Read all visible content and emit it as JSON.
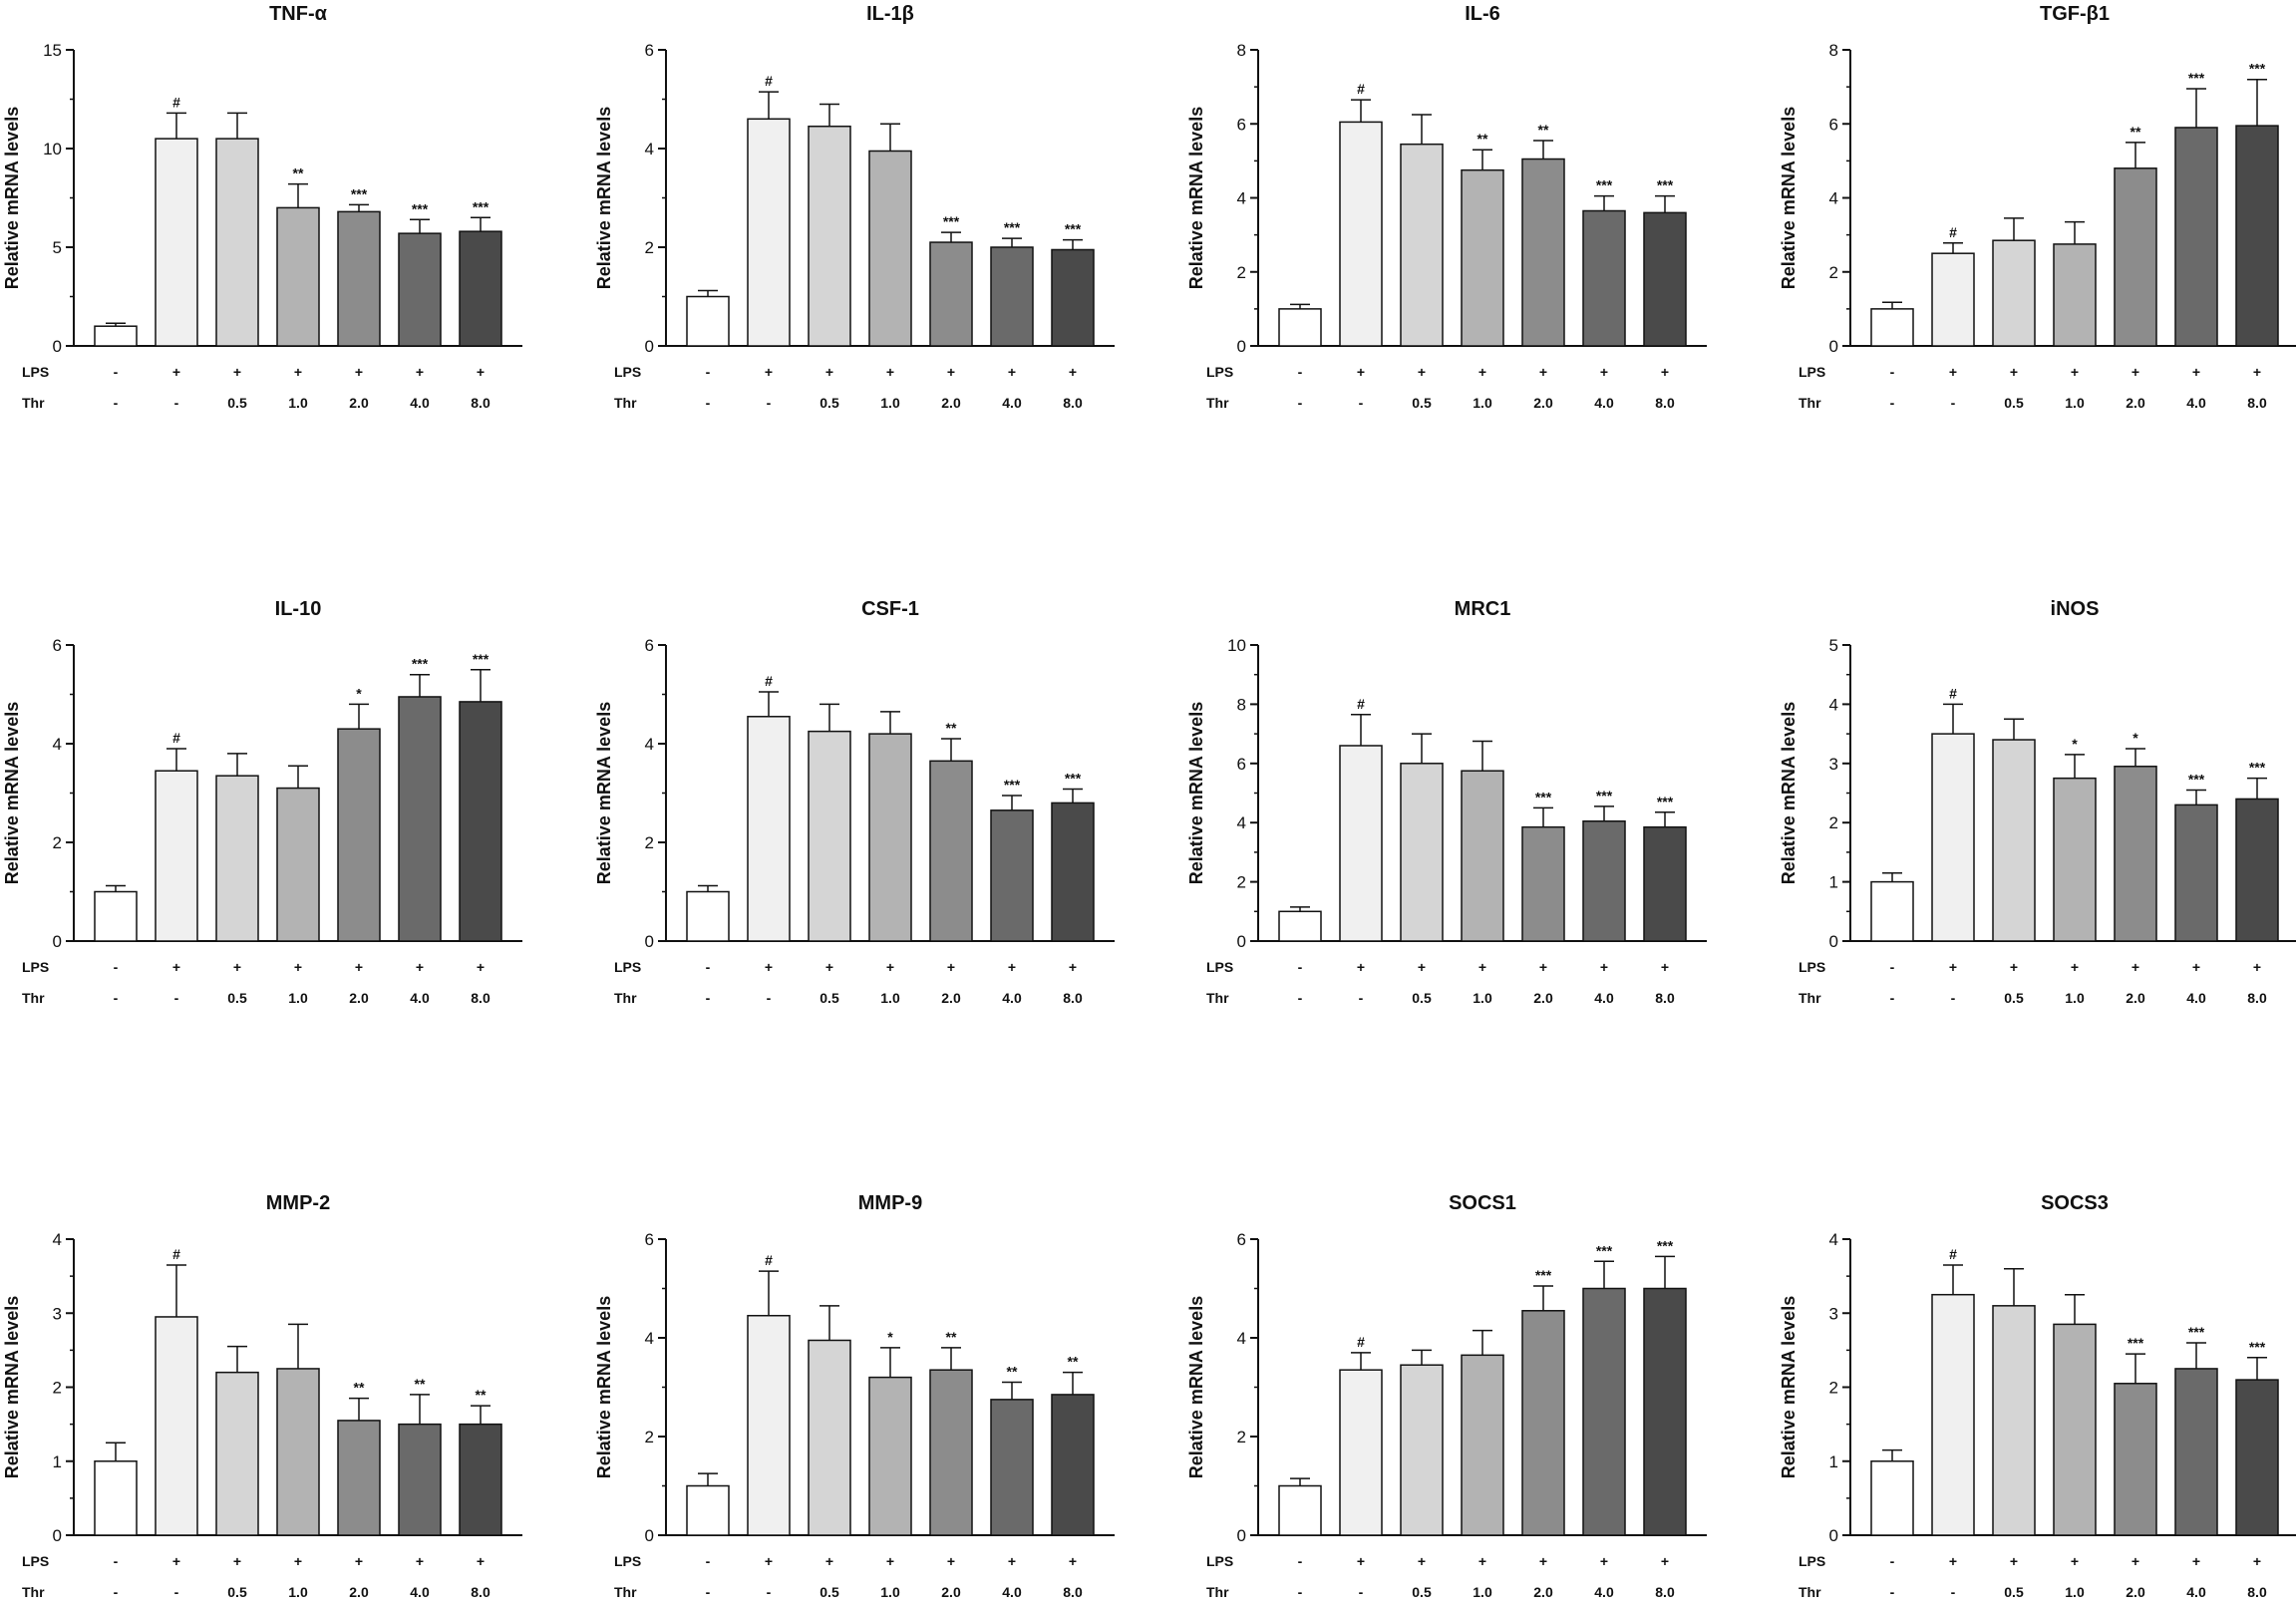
{
  "row_labels": [
    "LPS",
    "Thr"
  ],
  "conditions": {
    "LPS": [
      "-",
      "+",
      "+",
      "+",
      "+",
      "+",
      "+"
    ],
    "Thr": [
      "-",
      "-",
      "0.5",
      "1.0",
      "2.0",
      "4.0",
      "8.0"
    ]
  },
  "bar_colors": [
    "#ffffff",
    "#f0f0f0",
    "#d5d5d5",
    "#b3b3b3",
    "#8c8c8c",
    "#6a6a6a",
    "#4a4a4a"
  ],
  "chart_data": [
    {
      "type": "bar",
      "title": "TNF-α",
      "ylabel": "Relative mRNA levels",
      "ylim": [
        0,
        15
      ],
      "yticks": [
        0,
        5,
        10,
        15
      ],
      "yminor": 2.5,
      "values": [
        1.0,
        10.5,
        10.5,
        7.0,
        6.8,
        5.7,
        5.8
      ],
      "errors": [
        0.15,
        1.3,
        1.3,
        1.2,
        0.35,
        0.7,
        0.7
      ],
      "labels": [
        "",
        "#",
        "",
        "**",
        "***",
        "***",
        "***"
      ]
    },
    {
      "type": "bar",
      "title": "IL-1β",
      "ylabel": "Relative mRNA levels",
      "ylim": [
        0,
        6
      ],
      "yticks": [
        0,
        2,
        4,
        6
      ],
      "yminor": 1,
      "values": [
        1.0,
        4.6,
        4.45,
        3.95,
        2.1,
        2.0,
        1.95
      ],
      "errors": [
        0.12,
        0.55,
        0.45,
        0.55,
        0.2,
        0.18,
        0.2
      ],
      "labels": [
        "",
        "#",
        "",
        "",
        "***",
        "***",
        "***"
      ]
    },
    {
      "type": "bar",
      "title": "IL-6",
      "ylabel": "Relative mRNA levels",
      "ylim": [
        0,
        8
      ],
      "yticks": [
        0,
        2,
        4,
        6,
        8
      ],
      "yminor": 1,
      "values": [
        1.0,
        6.05,
        5.45,
        4.75,
        5.05,
        3.65,
        3.6
      ],
      "errors": [
        0.12,
        0.6,
        0.8,
        0.55,
        0.5,
        0.4,
        0.45
      ],
      "labels": [
        "",
        "#",
        "",
        "**",
        "**",
        "***",
        "***"
      ]
    },
    {
      "type": "bar",
      "title": "TGF-β1",
      "ylabel": "Relative mRNA levels",
      "ylim": [
        0,
        8
      ],
      "yticks": [
        0,
        2,
        4,
        6,
        8
      ],
      "yminor": 1,
      "values": [
        1.0,
        2.5,
        2.85,
        2.75,
        4.8,
        5.9,
        5.95
      ],
      "errors": [
        0.18,
        0.28,
        0.6,
        0.6,
        0.7,
        1.05,
        1.25
      ],
      "labels": [
        "",
        "#",
        "",
        "",
        "**",
        "***",
        "***"
      ]
    },
    {
      "type": "bar",
      "title": "IL-10",
      "ylabel": "Relative mRNA levels",
      "ylim": [
        0,
        6
      ],
      "yticks": [
        0,
        2,
        4,
        6
      ],
      "yminor": 1,
      "values": [
        1.0,
        3.45,
        3.35,
        3.1,
        4.3,
        4.95,
        4.85
      ],
      "errors": [
        0.12,
        0.45,
        0.45,
        0.45,
        0.5,
        0.45,
        0.65
      ],
      "labels": [
        "",
        "#",
        "",
        "",
        "*",
        "***",
        "***"
      ]
    },
    {
      "type": "bar",
      "title": "CSF-1",
      "ylabel": "Relative mRNA levels",
      "ylim": [
        0,
        6
      ],
      "yticks": [
        0,
        2,
        4,
        6
      ],
      "yminor": 1,
      "values": [
        1.0,
        4.55,
        4.25,
        4.2,
        3.65,
        2.65,
        2.8
      ],
      "errors": [
        0.12,
        0.5,
        0.55,
        0.45,
        0.45,
        0.3,
        0.28
      ],
      "labels": [
        "",
        "#",
        "",
        "",
        "**",
        "***",
        "***"
      ]
    },
    {
      "type": "bar",
      "title": "MRC1",
      "ylabel": "Relative mRNA levels",
      "ylim": [
        0,
        10
      ],
      "yticks": [
        0,
        2,
        4,
        6,
        8,
        10
      ],
      "yminor": 1,
      "values": [
        1.0,
        6.6,
        6.0,
        5.75,
        3.85,
        4.05,
        3.85
      ],
      "errors": [
        0.15,
        1.05,
        1.0,
        1.0,
        0.65,
        0.5,
        0.5
      ],
      "labels": [
        "",
        "#",
        "",
        "",
        "***",
        "***",
        "***"
      ]
    },
    {
      "type": "bar",
      "title": "iNOS",
      "ylabel": "Relative mRNA levels",
      "ylim": [
        0,
        5
      ],
      "yticks": [
        0,
        1,
        2,
        3,
        4,
        5
      ],
      "yminor": 0.5,
      "values": [
        1.0,
        3.5,
        3.4,
        2.75,
        2.95,
        2.3,
        2.4
      ],
      "errors": [
        0.15,
        0.5,
        0.35,
        0.4,
        0.3,
        0.25,
        0.35
      ],
      "labels": [
        "",
        "#",
        "",
        "*",
        "*",
        "***",
        "***"
      ]
    },
    {
      "type": "bar",
      "title": "MMP-2",
      "ylabel": "Relative mRNA levels",
      "ylim": [
        0,
        4
      ],
      "yticks": [
        0,
        1,
        2,
        3,
        4
      ],
      "yminor": 0.5,
      "values": [
        1.0,
        2.95,
        2.2,
        2.25,
        1.55,
        1.5,
        1.5
      ],
      "errors": [
        0.25,
        0.7,
        0.35,
        0.6,
        0.3,
        0.4,
        0.25
      ],
      "labels": [
        "",
        "#",
        "",
        "",
        "**",
        "**",
        "**"
      ]
    },
    {
      "type": "bar",
      "title": "MMP-9",
      "ylabel": "Relative mRNA levels",
      "ylim": [
        0,
        6
      ],
      "yticks": [
        0,
        2,
        4,
        6
      ],
      "yminor": 1,
      "values": [
        1.0,
        4.45,
        3.95,
        3.2,
        3.35,
        2.75,
        2.85
      ],
      "errors": [
        0.25,
        0.9,
        0.7,
        0.6,
        0.45,
        0.35,
        0.45
      ],
      "labels": [
        "",
        "#",
        "",
        "*",
        "**",
        "**",
        "**"
      ]
    },
    {
      "type": "bar",
      "title": "SOCS1",
      "ylabel": "Relative mRNA levels",
      "ylim": [
        0,
        6
      ],
      "yticks": [
        0,
        2,
        4,
        6
      ],
      "yminor": 1,
      "values": [
        1.0,
        3.35,
        3.45,
        3.65,
        4.55,
        5.0,
        5.0
      ],
      "errors": [
        0.15,
        0.35,
        0.3,
        0.5,
        0.5,
        0.55,
        0.65
      ],
      "labels": [
        "",
        "#",
        "",
        "",
        "***",
        "***",
        "***"
      ]
    },
    {
      "type": "bar",
      "title": "SOCS3",
      "ylabel": "Relative mRNA levels",
      "ylim": [
        0,
        4
      ],
      "yticks": [
        0,
        1,
        2,
        3,
        4
      ],
      "yminor": 0.5,
      "values": [
        1.0,
        3.25,
        3.1,
        2.85,
        2.05,
        2.25,
        2.1
      ],
      "errors": [
        0.15,
        0.4,
        0.5,
        0.4,
        0.4,
        0.35,
        0.3
      ],
      "labels": [
        "",
        "#",
        "",
        "",
        "***",
        "***",
        "***"
      ]
    }
  ]
}
